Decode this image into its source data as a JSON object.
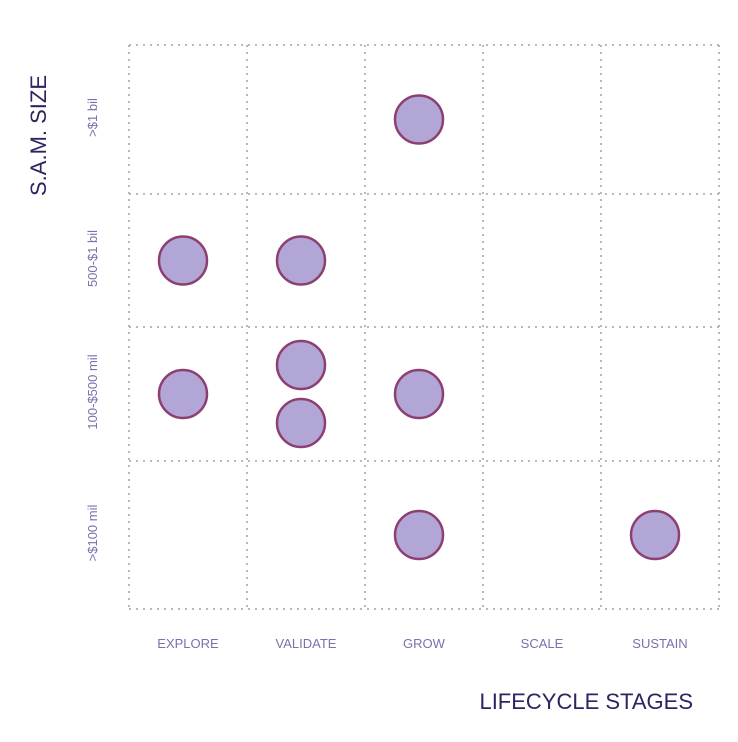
{
  "chart_data": {
    "type": "scatter",
    "xlabel": "LIFECYCLE STAGES",
    "ylabel": "S.A.M. SIZE",
    "x_categories": [
      "EXPLORE",
      "VALIDATE",
      "GROW",
      "SCALE",
      "SUSTAIN"
    ],
    "y_categories": [
      ">$1 bil",
      "500-$1 bil",
      "100-$500 mil",
      ">$100 mil"
    ],
    "points": [
      {
        "x": "GROW",
        "y": ">$1 bil"
      },
      {
        "x": "EXPLORE",
        "y": "500-$1 bil"
      },
      {
        "x": "VALIDATE",
        "y": "500-$1 bil"
      },
      {
        "x": "EXPLORE",
        "y": "100-$500 mil"
      },
      {
        "x": "VALIDATE",
        "y": "100-$500 mil"
      },
      {
        "x": "VALIDATE",
        "y": "100-$500 mil"
      },
      {
        "x": "GROW",
        "y": "100-$500 mil"
      },
      {
        "x": "GROW",
        "y": ">$100 mil"
      },
      {
        "x": "SUSTAIN",
        "y": ">$100 mil"
      }
    ],
    "grid": true,
    "legend": "none",
    "colors": {
      "fill": "#b1a6d6",
      "stroke": "#8e3f72",
      "labels": "#7c70ad",
      "titles": "#2b2560",
      "grid": "#b8b8b8"
    }
  }
}
